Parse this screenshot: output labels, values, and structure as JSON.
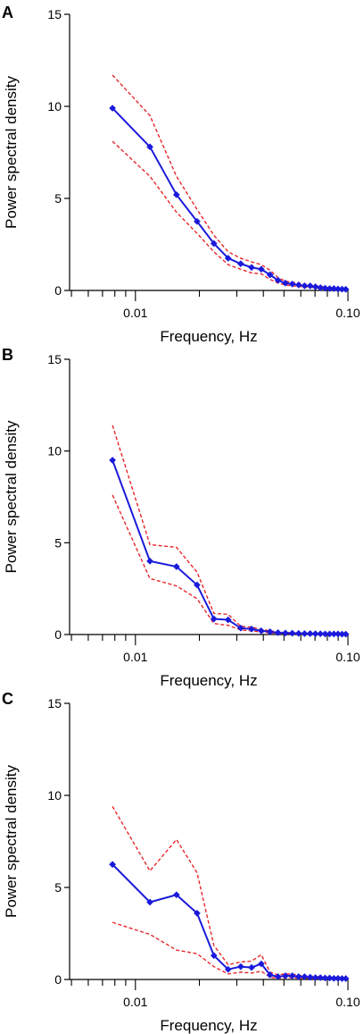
{
  "chart_data": [
    {
      "type": "line",
      "panel": "A",
      "xlabel": "Frequency, Hz",
      "ylabel": "Power spectral density",
      "xscale": "log",
      "xlim": [
        0.0049,
        0.1
      ],
      "ylim": [
        0,
        15
      ],
      "yticks": [
        0,
        5,
        10,
        15
      ],
      "xtick_labels": [
        {
          "value": 0.01,
          "label": "0.01"
        },
        {
          "value": 0.1,
          "label": "0.10"
        }
      ],
      "grid": false,
      "legend": "none",
      "x": [
        0.0078,
        0.0117,
        0.0156,
        0.0195,
        0.0234,
        0.0273,
        0.0313,
        0.0352,
        0.0391,
        0.043,
        0.0469,
        0.0508,
        0.0547,
        0.0586,
        0.0625,
        0.0664,
        0.0703,
        0.0742,
        0.0781,
        0.082,
        0.0859,
        0.0898,
        0.0938,
        0.0977
      ],
      "series": [
        {
          "role": "mean",
          "color": "#1a1adb",
          "style": "solid",
          "marker": "diamond",
          "values": [
            9.9,
            7.8,
            5.2,
            3.75,
            2.55,
            1.75,
            1.45,
            1.25,
            1.15,
            0.85,
            0.55,
            0.4,
            0.35,
            0.3,
            0.25,
            0.25,
            0.2,
            0.15,
            0.12,
            0.1,
            0.1,
            0.08,
            0.07,
            0.06
          ]
        },
        {
          "role": "upper",
          "color": "#e8262b",
          "style": "dashed",
          "values": [
            11.7,
            9.5,
            6.2,
            4.4,
            3.0,
            2.1,
            1.75,
            1.55,
            1.4,
            1.1,
            0.7,
            0.5,
            0.45,
            0.4,
            0.35,
            0.32,
            0.28,
            0.22,
            0.18,
            0.15,
            0.13,
            0.11,
            0.1,
            0.09
          ]
        },
        {
          "role": "lower",
          "color": "#e8262b",
          "style": "dashed",
          "values": [
            8.1,
            6.2,
            4.25,
            3.1,
            2.1,
            1.4,
            1.15,
            0.95,
            0.9,
            0.6,
            0.4,
            0.3,
            0.25,
            0.22,
            0.18,
            0.18,
            0.15,
            0.1,
            0.08,
            0.06,
            0.06,
            0.05,
            0.04,
            0.03
          ]
        }
      ]
    },
    {
      "type": "line",
      "panel": "B",
      "xlabel": "Frequency, Hz",
      "ylabel": "Power spectral density",
      "xscale": "log",
      "xlim": [
        0.0049,
        0.1
      ],
      "ylim": [
        0,
        15
      ],
      "yticks": [
        0,
        5,
        10,
        15
      ],
      "xtick_labels": [
        {
          "value": 0.01,
          "label": "0.01"
        },
        {
          "value": 0.1,
          "label": "0.10"
        }
      ],
      "grid": false,
      "legend": "none",
      "x": [
        0.0078,
        0.0117,
        0.0156,
        0.0195,
        0.0234,
        0.0273,
        0.0313,
        0.0352,
        0.0391,
        0.043,
        0.0469,
        0.0508,
        0.0547,
        0.0586,
        0.0625,
        0.0664,
        0.0703,
        0.0742,
        0.0781,
        0.082,
        0.0859,
        0.0898,
        0.0938,
        0.0977
      ],
      "series": [
        {
          "role": "mean",
          "color": "#1a1adb",
          "style": "solid",
          "marker": "diamond",
          "values": [
            9.5,
            4.0,
            3.7,
            2.7,
            0.85,
            0.8,
            0.35,
            0.3,
            0.2,
            0.15,
            0.1,
            0.08,
            0.07,
            0.06,
            0.05,
            0.05,
            0.04,
            0.04,
            0.03,
            0.03,
            0.03,
            0.03,
            0.02,
            0.02
          ]
        },
        {
          "role": "upper",
          "color": "#e8262b",
          "style": "dashed",
          "values": [
            11.4,
            4.9,
            4.75,
            3.4,
            1.15,
            1.1,
            0.45,
            0.4,
            0.28,
            0.2,
            0.14,
            0.11,
            0.1,
            0.08,
            0.07,
            0.07,
            0.06,
            0.06,
            0.05,
            0.05,
            0.05,
            0.04,
            0.04,
            0.04
          ]
        },
        {
          "role": "lower",
          "color": "#e8262b",
          "style": "dashed",
          "values": [
            7.6,
            3.05,
            2.65,
            1.95,
            0.6,
            0.5,
            0.25,
            0.2,
            0.13,
            0.1,
            0.06,
            0.05,
            0.04,
            0.04,
            0.03,
            0.03,
            0.02,
            0.02,
            0.02,
            0.02,
            0.01,
            0.01,
            0.01,
            0.01
          ]
        }
      ]
    },
    {
      "type": "line",
      "panel": "C",
      "xlabel": "Frequency, Hz",
      "ylabel": "Power spectral density",
      "xscale": "log",
      "xlim": [
        0.0049,
        0.1
      ],
      "ylim": [
        0,
        15
      ],
      "yticks": [
        0,
        5,
        10,
        15
      ],
      "xtick_labels": [
        {
          "value": 0.01,
          "label": "0.01"
        },
        {
          "value": 0.1,
          "label": "0.10"
        }
      ],
      "grid": false,
      "legend": "none",
      "x": [
        0.0078,
        0.0117,
        0.0156,
        0.0195,
        0.0234,
        0.0273,
        0.0313,
        0.0352,
        0.0391,
        0.043,
        0.0469,
        0.0508,
        0.0547,
        0.0586,
        0.0625,
        0.0664,
        0.0703,
        0.0742,
        0.0781,
        0.082,
        0.0859,
        0.0898,
        0.0938,
        0.0977
      ],
      "series": [
        {
          "role": "mean",
          "color": "#1a1adb",
          "style": "solid",
          "marker": "diamond",
          "values": [
            6.25,
            4.2,
            4.6,
            3.6,
            1.3,
            0.55,
            0.7,
            0.65,
            0.85,
            0.25,
            0.15,
            0.2,
            0.2,
            0.15,
            0.15,
            0.12,
            0.1,
            0.1,
            0.08,
            0.08,
            0.06,
            0.06,
            0.05,
            0.05
          ]
        },
        {
          "role": "upper",
          "color": "#e8262b",
          "style": "dashed",
          "values": [
            9.4,
            5.9,
            7.6,
            5.8,
            1.85,
            0.8,
            0.95,
            1.0,
            1.35,
            0.4,
            0.25,
            0.3,
            0.3,
            0.22,
            0.2,
            0.18,
            0.16,
            0.14,
            0.12,
            0.12,
            0.1,
            0.1,
            0.08,
            0.08
          ]
        },
        {
          "role": "lower",
          "color": "#e8262b",
          "style": "dashed",
          "values": [
            3.1,
            2.45,
            1.6,
            1.4,
            0.7,
            0.3,
            0.4,
            0.35,
            0.45,
            0.12,
            0.07,
            0.1,
            0.1,
            0.08,
            0.07,
            0.06,
            0.05,
            0.05,
            0.04,
            0.04,
            0.03,
            0.03,
            0.03,
            0.02
          ]
        }
      ]
    }
  ]
}
